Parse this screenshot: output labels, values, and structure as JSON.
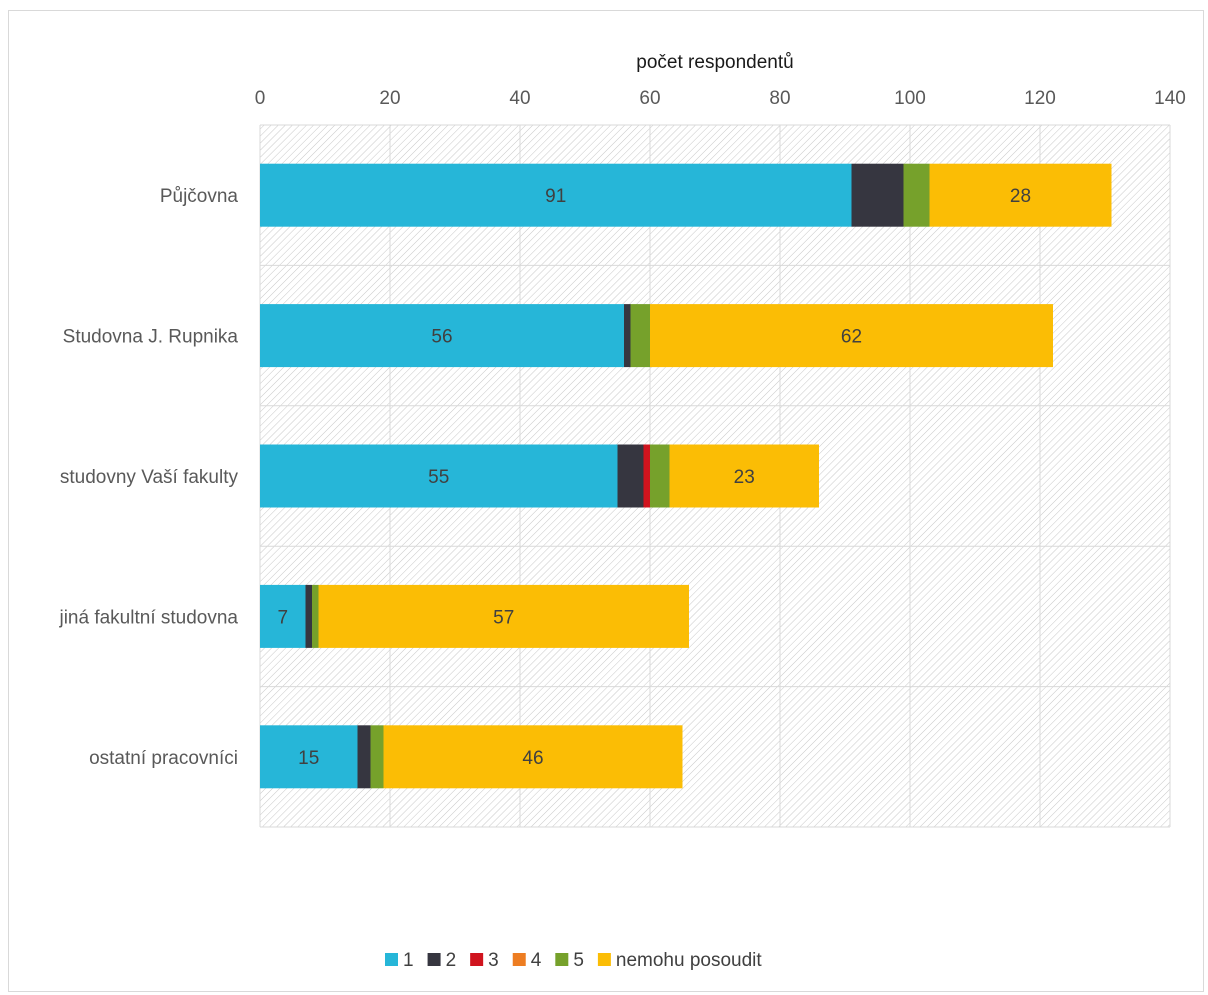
{
  "chart_data": {
    "type": "bar",
    "orientation": "horizontal",
    "stacked": true,
    "xlabel": "počet respondentů",
    "xlim": [
      0,
      140
    ],
    "x_ticks": [
      0,
      20,
      40,
      60,
      80,
      100,
      120,
      140
    ],
    "grid": true,
    "legend_position": "bottom",
    "categories": [
      "Půjčovna",
      "Studovna J. Rupnika",
      "studovny Vaší fakulty",
      "jiná fakultní studovna",
      "ostatní pracovníci"
    ],
    "series": [
      {
        "name": "1",
        "color": "#26b6d8",
        "values": [
          91,
          56,
          55,
          7,
          15
        ],
        "show_labels": true
      },
      {
        "name": "2",
        "color": "#363640",
        "values": [
          8,
          1,
          4,
          1,
          2
        ],
        "show_labels": false
      },
      {
        "name": "3",
        "color": "#d0141e",
        "values": [
          0,
          0,
          1,
          0,
          0
        ],
        "show_labels": false
      },
      {
        "name": "4",
        "color": "#ed7d22",
        "values": [
          0,
          0,
          0,
          0,
          0
        ],
        "show_labels": false
      },
      {
        "name": "5",
        "color": "#76a12b",
        "values": [
          4,
          3,
          3,
          1,
          2
        ],
        "show_labels": false
      },
      {
        "name": "nemohu posoudit",
        "color": "#fbbd05",
        "values": [
          28,
          62,
          23,
          57,
          46
        ],
        "show_labels": true
      }
    ]
  }
}
